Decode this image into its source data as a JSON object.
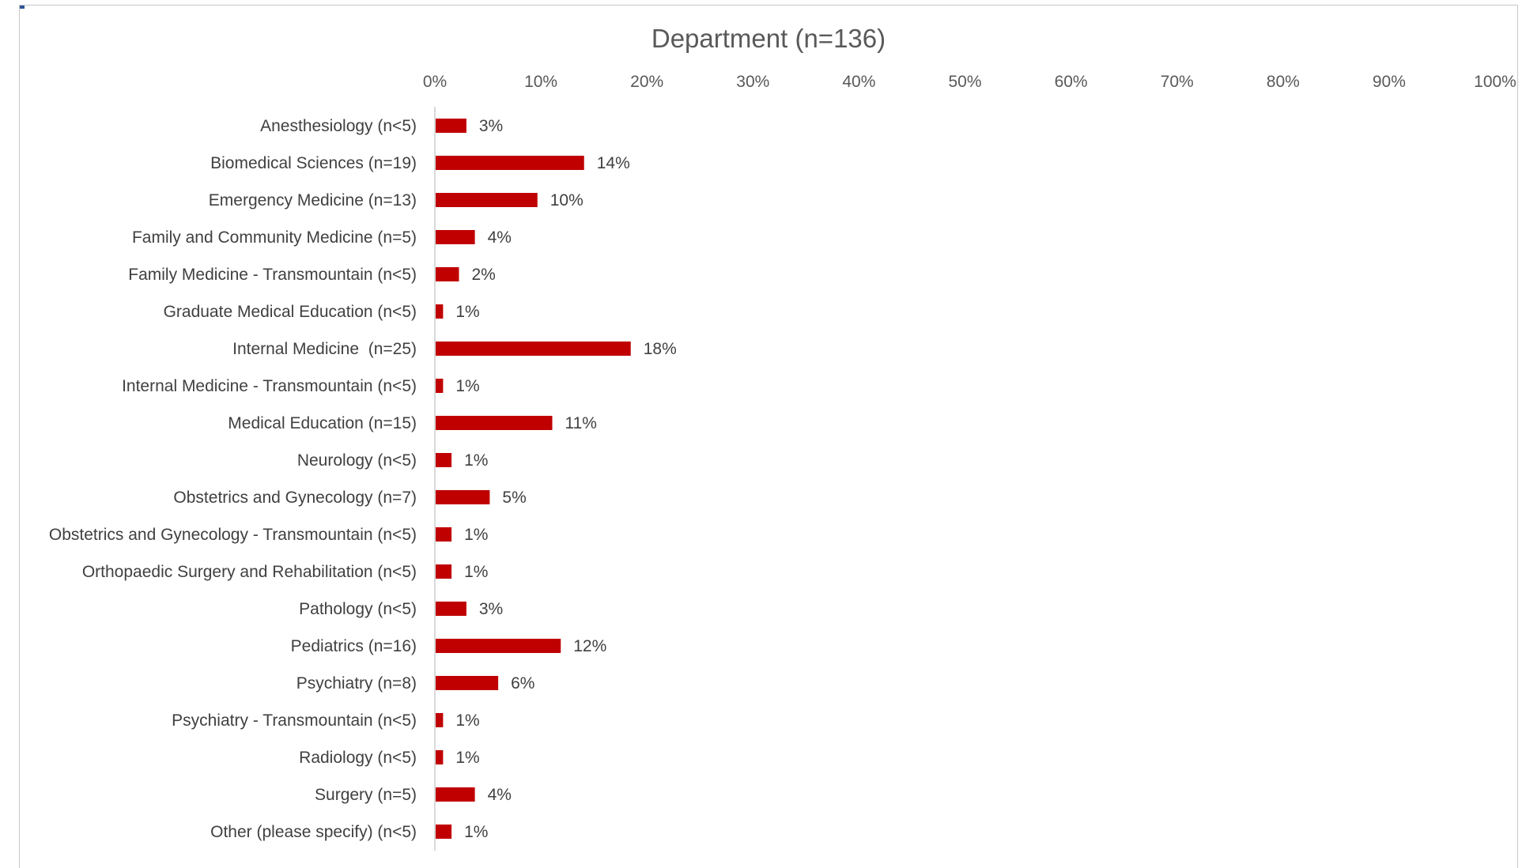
{
  "chart_data": {
    "type": "bar",
    "orientation": "horizontal",
    "title": "Department (n=136)",
    "xlabel": "",
    "ylabel": "",
    "xlim": [
      0,
      100
    ],
    "x_ticks": [
      "0%",
      "10%",
      "20%",
      "30%",
      "40%",
      "50%",
      "60%",
      "70%",
      "80%",
      "90%",
      "100%"
    ],
    "grid": false,
    "legend": "none",
    "bar_color": "#c00000",
    "categories": [
      "Anesthesiology (n<5)",
      "Biomedical Sciences (n=19)",
      "Emergency Medicine (n=13)",
      "Family and Community Medicine (n=5)",
      "Family Medicine - Transmountain (n<5)",
      "Graduate Medical Education (n<5)",
      "Internal Medicine  (n=25)",
      "Internal Medicine - Transmountain (n<5)",
      "Medical Education (n=15)",
      "Neurology (n<5)",
      "Obstetrics and Gynecology (n=7)",
      "Obstetrics and Gynecology - Transmountain (n<5)",
      "Orthopaedic Surgery and Rehabilitation (n<5)",
      "Pathology (n<5)",
      "Pediatrics (n=16)",
      "Psychiatry (n=8)",
      "Psychiatry - Transmountain (n<5)",
      "Radiology (n<5)",
      "Surgery (n=5)",
      "Other (please specify) (n<5)"
    ],
    "values": [
      2.9,
      14.0,
      9.6,
      3.7,
      2.2,
      0.7,
      18.4,
      0.7,
      11.0,
      1.5,
      5.1,
      1.5,
      1.5,
      2.9,
      11.8,
      5.9,
      0.7,
      0.7,
      3.7,
      1.5
    ],
    "data_labels": [
      "3%",
      "14%",
      "10%",
      "4%",
      "2%",
      "1%",
      "18%",
      "1%",
      "11%",
      "1%",
      "5%",
      "1%",
      "1%",
      "3%",
      "12%",
      "6%",
      "1%",
      "1%",
      "4%",
      "1%"
    ]
  }
}
